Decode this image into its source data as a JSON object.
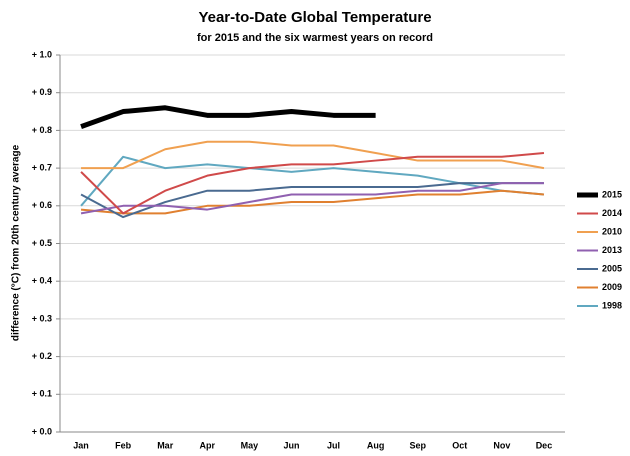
{
  "chart_data": {
    "type": "line",
    "title": "Year-to-Date Global Temperature",
    "subtitle": "for 2015 and the six warmest years on record",
    "y_label": "difference (°C) from 20th century average",
    "categories": [
      "Jan",
      "Feb",
      "Mar",
      "Apr",
      "May",
      "Jun",
      "Jul",
      "Aug",
      "Sep",
      "Oct",
      "Nov",
      "Dec"
    ],
    "ylim": [
      0,
      1.0
    ],
    "yticks": [
      {
        "value": 0,
        "label": "+ 0.0"
      },
      {
        "value": 0.1,
        "label": "+ 0.1"
      },
      {
        "value": 0.2,
        "label": "+ 0.2"
      },
      {
        "value": 0.3,
        "label": "+ 0.3"
      },
      {
        "value": 0.4,
        "label": "+ 0.4"
      },
      {
        "value": 0.5,
        "label": "+ 0.5"
      },
      {
        "value": 0.6,
        "label": "+ 0.6"
      },
      {
        "value": 0.7,
        "label": "+ 0.7"
      },
      {
        "value": 0.8,
        "label": "+ 0.8"
      },
      {
        "value": 0.9,
        "label": "+ 0.9"
      },
      {
        "value": 1.0,
        "label": "+ 1.0"
      }
    ],
    "grid": true,
    "legend": "right",
    "series": [
      {
        "name": "2015",
        "color": "#000000",
        "values": [
          0.81,
          0.85,
          0.86,
          0.84,
          0.84,
          0.85,
          0.84,
          0.84,
          null,
          null,
          null,
          null
        ]
      },
      {
        "name": "2014",
        "color": "#d04a4a",
        "values": [
          0.69,
          0.58,
          0.64,
          0.68,
          0.7,
          0.71,
          0.71,
          0.72,
          0.73,
          0.73,
          0.73,
          0.74
        ]
      },
      {
        "name": "2010",
        "color": "#f0a050",
        "values": [
          0.7,
          0.7,
          0.75,
          0.77,
          0.77,
          0.76,
          0.76,
          0.74,
          0.72,
          0.72,
          0.72,
          0.7
        ]
      },
      {
        "name": "2013",
        "color": "#9060b0",
        "values": [
          0.58,
          0.6,
          0.6,
          0.59,
          0.61,
          0.63,
          0.63,
          0.63,
          0.64,
          0.64,
          0.66,
          0.66
        ]
      },
      {
        "name": "2005",
        "color": "#4a6a90",
        "values": [
          0.63,
          0.57,
          0.61,
          0.64,
          0.64,
          0.65,
          0.65,
          0.65,
          0.65,
          0.66,
          0.66,
          0.66
        ]
      },
      {
        "name": "2009",
        "color": "#e08030",
        "values": [
          0.59,
          0.58,
          0.58,
          0.6,
          0.6,
          0.61,
          0.61,
          0.62,
          0.63,
          0.63,
          0.64,
          0.63
        ]
      },
      {
        "name": "1998",
        "color": "#60a8c0",
        "values": [
          0.6,
          0.73,
          0.7,
          0.71,
          0.7,
          0.69,
          0.7,
          0.69,
          0.68,
          0.66,
          0.64,
          0.63
        ]
      }
    ]
  }
}
